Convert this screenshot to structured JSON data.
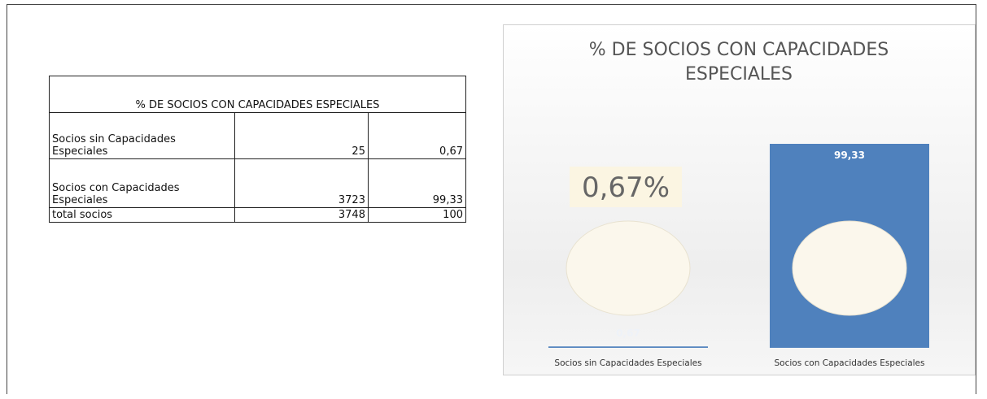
{
  "table": {
    "title": "% DE SOCIOS CON CAPACIDADES ESPECIALES",
    "rows": [
      [
        "Socios sin Capacidades Especiales",
        "25",
        "0,67"
      ],
      [
        "Socios con Capacidades Especiales",
        "3723",
        "99,33"
      ],
      [
        "total socios",
        "3748",
        "100"
      ]
    ]
  },
  "chart_data": {
    "type": "bar",
    "title": "% DE SOCIOS CON CAPACIDADES ESPECIALES",
    "categories": [
      "Socios sin Capacidades Especiales",
      "Socios con Capacidades Especiales"
    ],
    "values": [
      0.67,
      99.33
    ],
    "value_labels": [
      "0,67",
      "99,33"
    ],
    "annotation": "0,67%",
    "color": "#4f81bd"
  }
}
